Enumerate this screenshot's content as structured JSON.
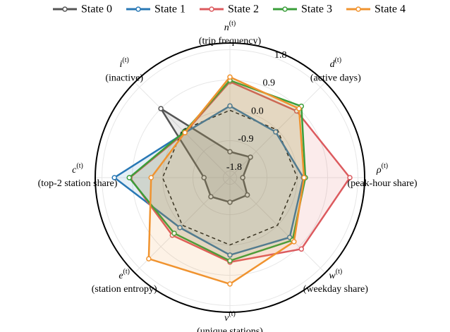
{
  "chart_data": {
    "type": "radar",
    "axes": [
      {
        "symbol": "n",
        "sup": "(t)",
        "desc": "(trip frequency)"
      },
      {
        "symbol": "d",
        "sup": "(t)",
        "desc": "(active days)"
      },
      {
        "symbol": "ρ",
        "sup": "(t)",
        "desc": "(peak-hour share)"
      },
      {
        "symbol": "w",
        "sup": "(t)",
        "desc": "(weekday share)"
      },
      {
        "symbol": "v",
        "sup": "(t)",
        "desc": "(unique stations)"
      },
      {
        "symbol": "e",
        "sup": "(t)",
        "desc": "(station entropy)"
      },
      {
        "symbol": "c",
        "sup": "(t)",
        "desc": "(top-2 station share)"
      },
      {
        "symbol": "i",
        "sup": "(t)",
        "desc": "(inactive)"
      }
    ],
    "rlim": [
      -2.0,
      2.0
    ],
    "rticks": [
      -1.8,
      -0.9,
      {
        "value": 0,
        "label": "0.0"
      },
      0.9,
      1.8
    ],
    "reference_ring": 0,
    "grid": true,
    "series": [
      {
        "name": "State 0",
        "color": "#555555",
        "values": [
          -1.23,
          -1.14,
          -1.62,
          -1.27,
          -1.27,
          -1.2,
          -1.23,
          0.9
        ]
      },
      {
        "name": "State 1",
        "color": "#2878b5",
        "values": [
          0.13,
          -0.08,
          0.18,
          0.51,
          0.3,
          0.1,
          1.43,
          -0.11
        ]
      },
      {
        "name": "State 2",
        "color": "#dc5a5e",
        "values": [
          0.85,
          0.8,
          1.56,
          1.0,
          0.51,
          0.42,
          0.97,
          -0.11
        ]
      },
      {
        "name": "State 3",
        "color": "#3a9e3a",
        "values": [
          0.89,
          1.0,
          0.24,
          0.63,
          0.47,
          0.34,
          0.99,
          -0.08
        ]
      },
      {
        "name": "State 4",
        "color": "#f0932f",
        "values": [
          0.99,
          0.9,
          0.2,
          0.69,
          1.16,
          1.41,
          0.34,
          -0.11
        ]
      }
    ]
  }
}
